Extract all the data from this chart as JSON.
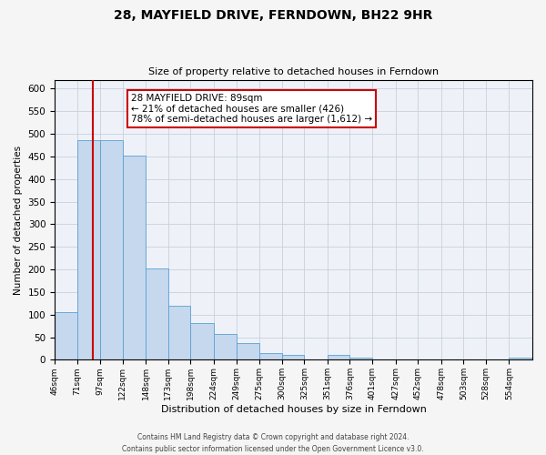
{
  "title": "28, MAYFIELD DRIVE, FERNDOWN, BH22 9HR",
  "subtitle": "Size of property relative to detached houses in Ferndown",
  "xlabel": "Distribution of detached houses by size in Ferndown",
  "ylabel": "Number of detached properties",
  "bin_labels": [
    "46sqm",
    "71sqm",
    "97sqm",
    "122sqm",
    "148sqm",
    "173sqm",
    "198sqm",
    "224sqm",
    "249sqm",
    "275sqm",
    "300sqm",
    "325sqm",
    "351sqm",
    "376sqm",
    "401sqm",
    "427sqm",
    "452sqm",
    "478sqm",
    "503sqm",
    "528sqm",
    "554sqm"
  ],
  "bar_heights": [
    105,
    487,
    487,
    452,
    203,
    120,
    82,
    57,
    37,
    15,
    10,
    0,
    10,
    5,
    0,
    0,
    0,
    0,
    0,
    0,
    5
  ],
  "bar_color": "#c5d8ed",
  "bar_edge_color": "#5a9fd4",
  "grid_color": "#c8d0dc",
  "background_color": "#eef2f8",
  "fig_background_color": "#f5f5f5",
  "property_line_x": 89,
  "annotation_text": "28 MAYFIELD DRIVE: 89sqm\n← 21% of detached houses are smaller (426)\n78% of semi-detached houses are larger (1,612) →",
  "annotation_box_color": "#ffffff",
  "annotation_box_edge": "#cc0000",
  "red_line_color": "#cc0000",
  "ylim": [
    0,
    620
  ],
  "yticks": [
    0,
    50,
    100,
    150,
    200,
    250,
    300,
    350,
    400,
    450,
    500,
    550,
    600
  ],
  "footer_line1": "Contains HM Land Registry data © Crown copyright and database right 2024.",
  "footer_line2": "Contains public sector information licensed under the Open Government Licence v3.0."
}
